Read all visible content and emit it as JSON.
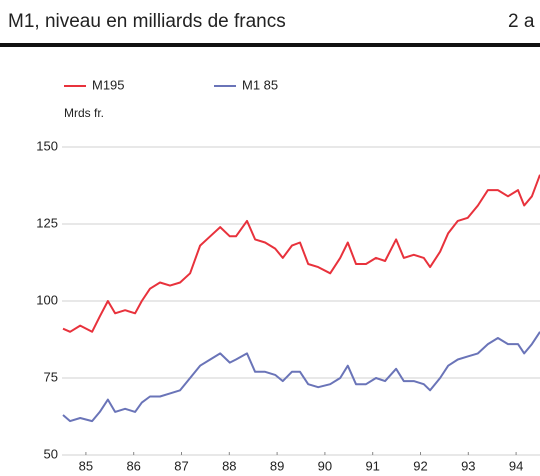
{
  "chart_data": {
    "type": "line",
    "title": "M1, niveau en milliards de francs",
    "subtitle": "2 a",
    "ylabel": "Mrds fr.",
    "x": [
      85.02,
      85.17,
      85.38,
      85.63,
      85.79,
      85.96,
      86.11,
      86.32,
      86.53,
      86.67,
      86.84,
      87.05,
      87.26,
      87.47,
      87.68,
      87.89,
      88.1,
      88.31,
      88.51,
      88.64,
      88.87,
      89.04,
      89.25,
      89.46,
      89.62,
      89.81,
      89.98,
      90.15,
      90.36,
      90.61,
      90.82,
      90.98,
      91.15,
      91.36,
      91.57,
      91.76,
      91.99,
      92.15,
      92.36,
      92.57,
      92.7,
      92.91,
      93.08,
      93.28,
      93.49,
      93.7,
      93.91,
      94.12,
      94.33,
      94.54,
      94.67,
      94.83,
      95
    ],
    "series": [
      {
        "name": "M195",
        "color": "#e8323c",
        "values": [
          91,
          90,
          92,
          90,
          95,
          100,
          96,
          97,
          96,
          100,
          104,
          106,
          105,
          106,
          109,
          118,
          121,
          124,
          121,
          121,
          126,
          120,
          119,
          117,
          114,
          118,
          119,
          112,
          111,
          109,
          114,
          119,
          112,
          112,
          114,
          113,
          120,
          114,
          115,
          114,
          111,
          116,
          122,
          126,
          127,
          131,
          136,
          136,
          134,
          136,
          131,
          134,
          141
        ]
      },
      {
        "name": "M1  85",
        "color": "#6a74b8",
        "values": [
          63,
          61,
          62,
          61,
          64,
          68,
          64,
          65,
          64,
          67,
          69,
          69,
          70,
          71,
          75,
          79,
          81,
          83,
          80,
          81,
          83,
          77,
          77,
          76,
          74,
          77,
          77,
          73,
          72,
          73,
          75,
          79,
          73,
          73,
          75,
          74,
          78,
          74,
          74,
          73,
          71,
          75,
          79,
          81,
          82,
          83,
          86,
          88,
          86,
          86,
          83,
          86,
          90
        ]
      }
    ],
    "xlim": [
      85,
      95
    ],
    "ylim": [
      50,
      150
    ],
    "xticks": [
      {
        "value": 85.5,
        "label": "85"
      },
      {
        "value": 86.5,
        "label": "86"
      },
      {
        "value": 87.5,
        "label": "87"
      },
      {
        "value": 88.5,
        "label": "88"
      },
      {
        "value": 89.5,
        "label": "89"
      },
      {
        "value": 90.5,
        "label": "90"
      },
      {
        "value": 91.5,
        "label": "91"
      },
      {
        "value": 92.5,
        "label": "92"
      },
      {
        "value": 93.5,
        "label": "93"
      },
      {
        "value": 94.5,
        "label": "94"
      }
    ],
    "yticks": [
      50,
      75,
      100,
      125,
      150
    ],
    "grid": true
  }
}
